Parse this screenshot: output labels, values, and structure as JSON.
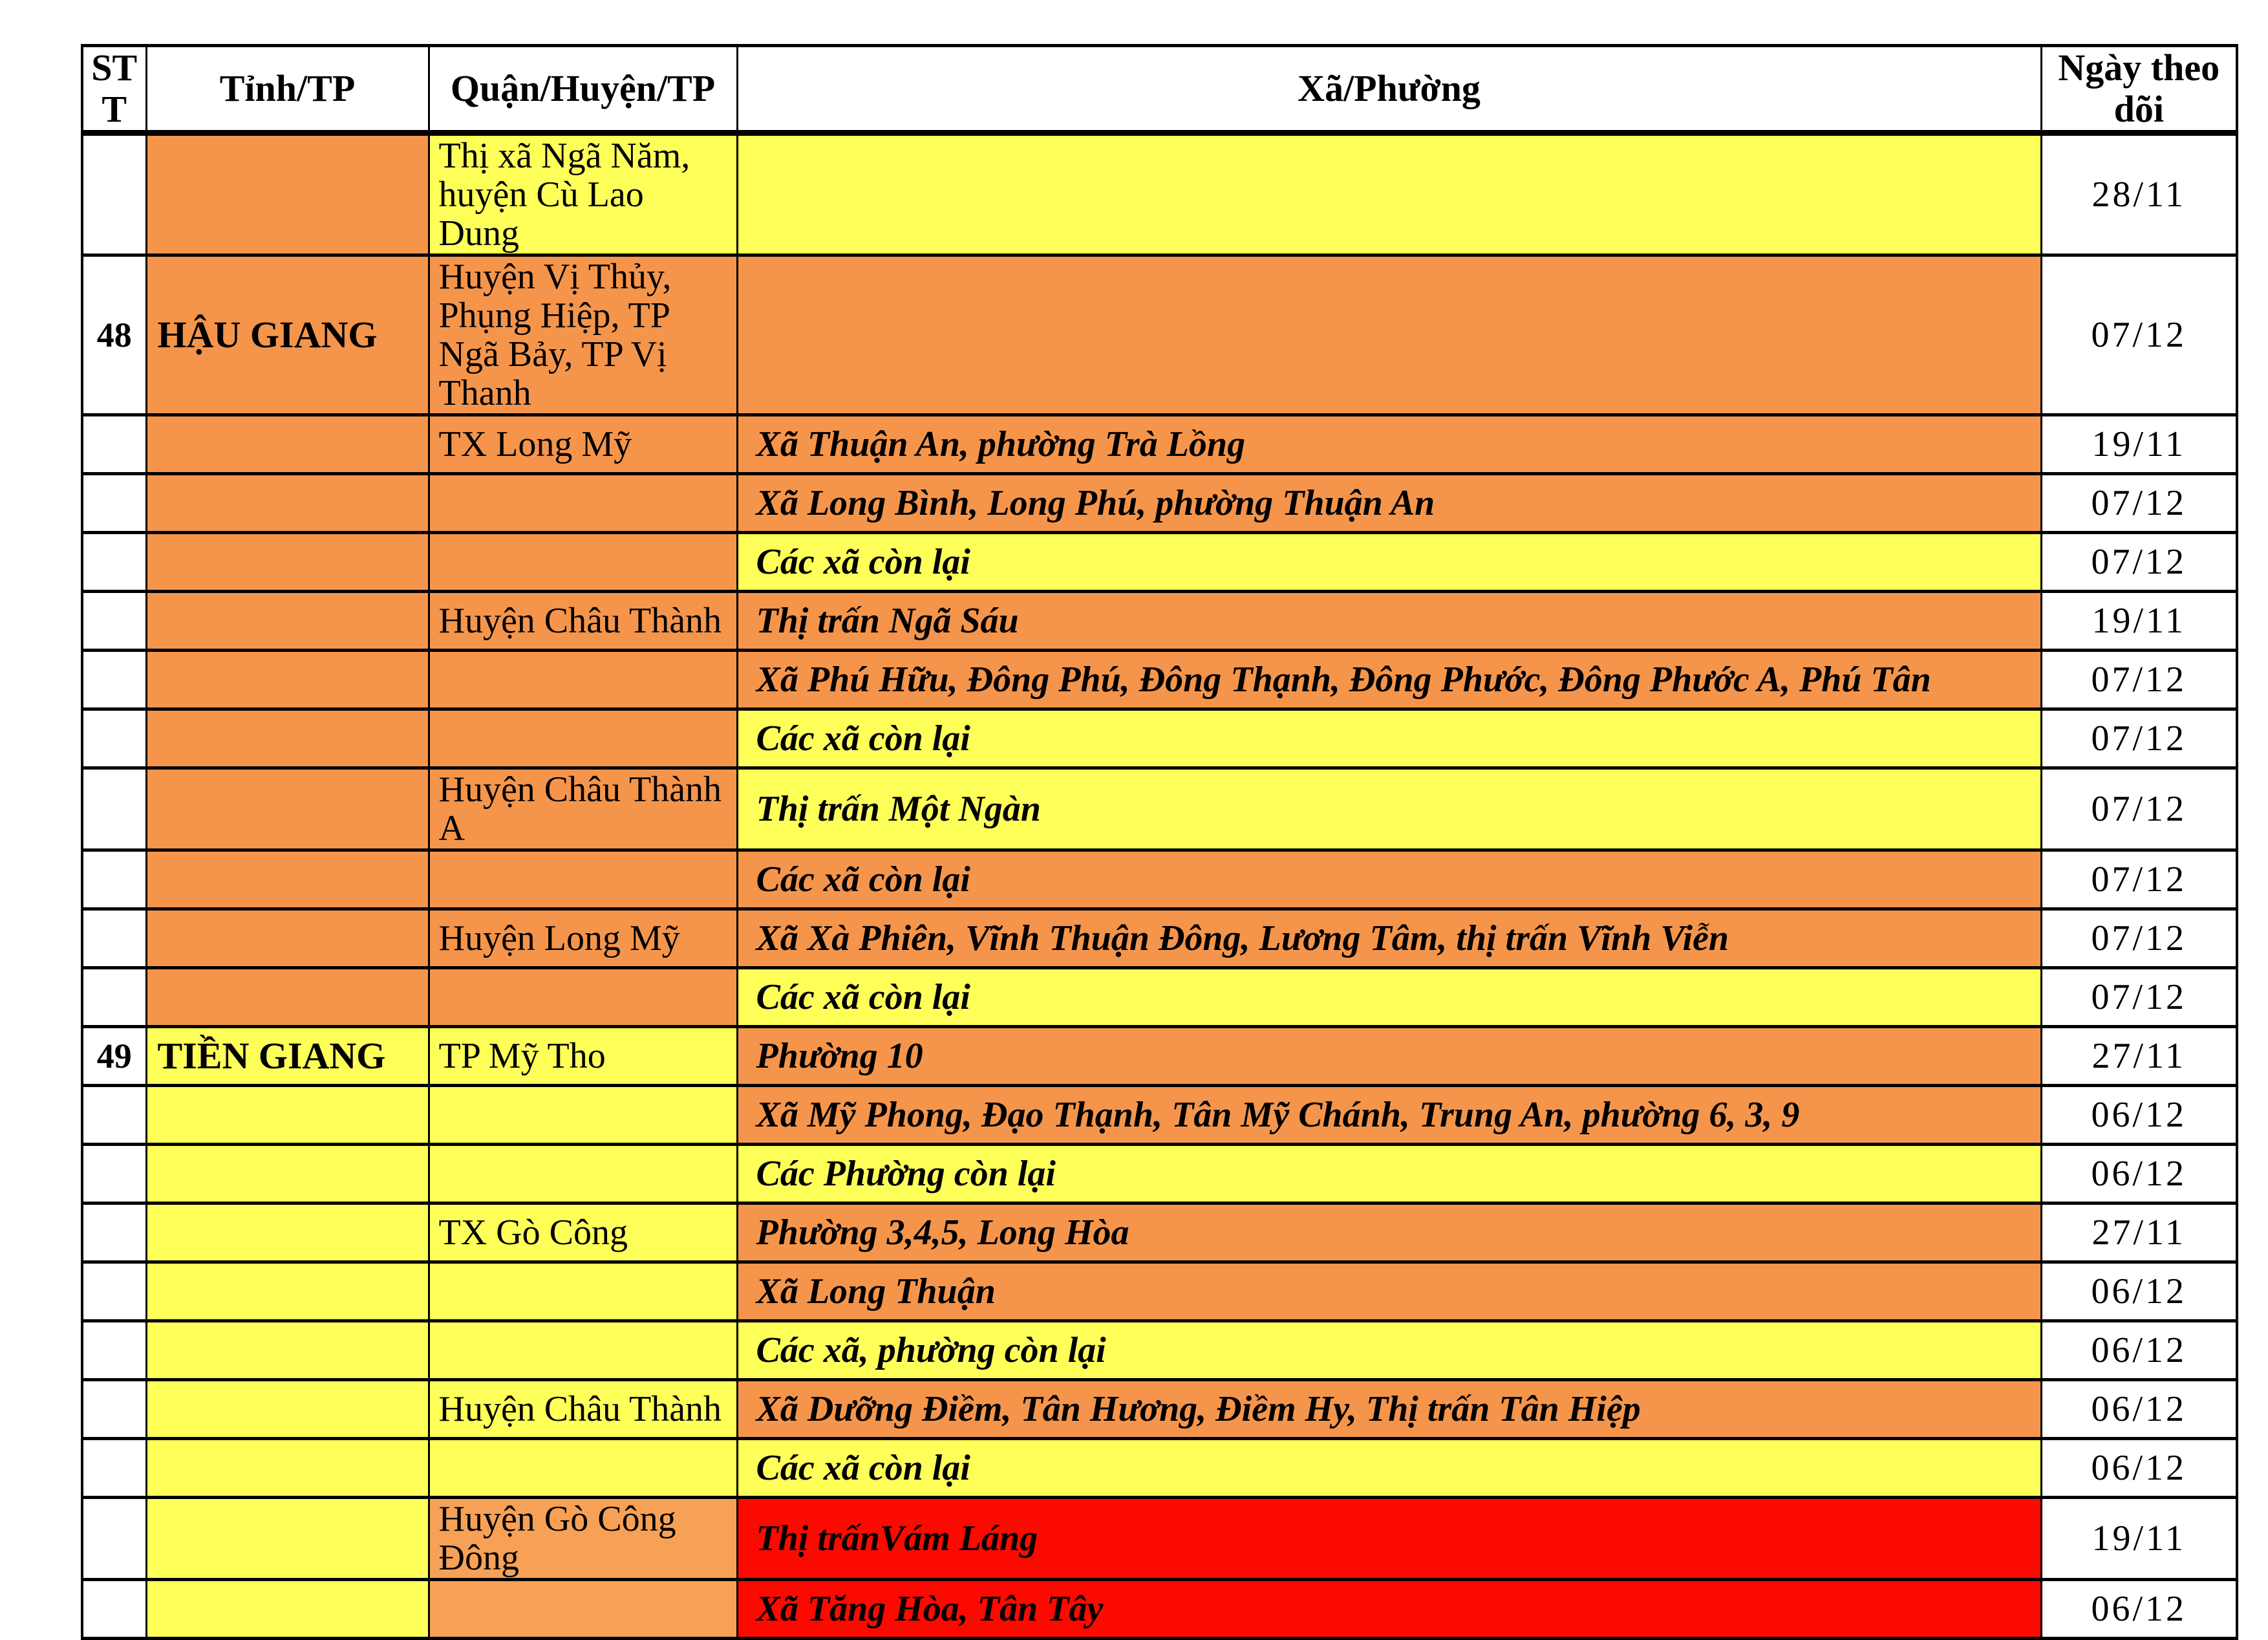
{
  "colors": {
    "orange": "#F5954B",
    "light_orange": "#F6A156",
    "yellow": "#FFFF5A",
    "red": "#FB0A01",
    "white": "#FFFFFF",
    "border": "#000000"
  },
  "header": {
    "columns": [
      "STT",
      "Tỉnh/TP",
      "Quận/Huyện/TP",
      "Xã/Phường",
      "Ngày theo dõi"
    ]
  },
  "rows": [
    {
      "stt": "",
      "province": "",
      "district": "Thị xã Ngã Năm, huyện Cù Lao Dung",
      "ward": "",
      "date": "28/11",
      "province_bg": "orange",
      "district_bg": "yellow",
      "ward_bg": "yellow"
    },
    {
      "stt": "48",
      "province": "HẬU GIANG",
      "district": "Huyện Vị Thủy, Phụng Hiệp, TP Ngã Bảy, TP Vị Thanh",
      "ward": "",
      "date": "07/12",
      "province_bg": "orange",
      "district_bg": "orange",
      "ward_bg": "orange"
    },
    {
      "stt": "",
      "province": "",
      "district": "TX Long Mỹ",
      "ward": "Xã Thuận An, phường Trà Lồng",
      "date": "19/11",
      "province_bg": "orange",
      "district_bg": "orange",
      "ward_bg": "orange"
    },
    {
      "stt": "",
      "province": "",
      "district": "",
      "ward": "Xã Long Bình, Long Phú, phường Thuận An",
      "date": "07/12",
      "province_bg": "orange",
      "district_bg": "orange",
      "ward_bg": "orange"
    },
    {
      "stt": "",
      "province": "",
      "district": "",
      "ward": "Các xã còn lại",
      "date": "07/12",
      "province_bg": "orange",
      "district_bg": "orange",
      "ward_bg": "yellow"
    },
    {
      "stt": "",
      "province": "",
      "district": "Huyện Châu Thành",
      "ward": "Thị trấn Ngã Sáu",
      "date": "19/11",
      "province_bg": "orange",
      "district_bg": "orange",
      "ward_bg": "orange"
    },
    {
      "stt": "",
      "province": "",
      "district": "",
      "ward": "Xã Phú Hữu, Đông Phú, Đông Thạnh, Đông Phước, Đông Phước A, Phú Tân",
      "date": "07/12",
      "province_bg": "orange",
      "district_bg": "orange",
      "ward_bg": "orange"
    },
    {
      "stt": "",
      "province": "",
      "district": "",
      "ward": "Các xã còn lại",
      "date": "07/12",
      "province_bg": "orange",
      "district_bg": "orange",
      "ward_bg": "yellow"
    },
    {
      "stt": "",
      "province": "",
      "district": "Huyện Châu Thành A",
      "ward": "Thị trấn Một Ngàn",
      "date": "07/12",
      "province_bg": "orange",
      "district_bg": "orange",
      "ward_bg": "yellow"
    },
    {
      "stt": "",
      "province": "",
      "district": "",
      "ward": "Các xã còn lại",
      "date": "07/12",
      "province_bg": "orange",
      "district_bg": "orange",
      "ward_bg": "orange"
    },
    {
      "stt": "",
      "province": "",
      "district": "Huyện Long Mỹ",
      "ward": "Xã Xà Phiên, Vĩnh Thuận Đông, Lương Tâm, thị trấn Vĩnh Viễn",
      "date": "07/12",
      "province_bg": "orange",
      "district_bg": "orange",
      "ward_bg": "orange"
    },
    {
      "stt": "",
      "province": "",
      "district": "",
      "ward": "Các xã còn lại",
      "date": "07/12",
      "province_bg": "orange",
      "district_bg": "orange",
      "ward_bg": "yellow"
    },
    {
      "stt": "49",
      "province": "TIỀN GIANG",
      "district": "TP Mỹ Tho",
      "ward": "Phường 10",
      "date": "27/11",
      "province_bg": "yellow",
      "district_bg": "yellow",
      "ward_bg": "orange"
    },
    {
      "stt": "",
      "province": "",
      "district": "",
      "ward": "Xã Mỹ Phong, Đạo Thạnh, Tân Mỹ Chánh, Trung An, phường 6, 3, 9",
      "date": "06/12",
      "province_bg": "yellow",
      "district_bg": "yellow",
      "ward_bg": "orange"
    },
    {
      "stt": "",
      "province": "",
      "district": "",
      "ward": "Các Phường còn lại",
      "date": "06/12",
      "province_bg": "yellow",
      "district_bg": "yellow",
      "ward_bg": "yellow"
    },
    {
      "stt": "",
      "province": "",
      "district": "TX Gò Công",
      "ward": "Phường 3,4,5, Long Hòa",
      "date": "27/11",
      "province_bg": "yellow",
      "district_bg": "yellow",
      "ward_bg": "orange"
    },
    {
      "stt": "",
      "province": "",
      "district": "",
      "ward": "Xã Long Thuận",
      "date": "06/12",
      "province_bg": "yellow",
      "district_bg": "yellow",
      "ward_bg": "orange"
    },
    {
      "stt": "",
      "province": "",
      "district": "",
      "ward": "Các xã, phường còn lại",
      "date": "06/12",
      "province_bg": "yellow",
      "district_bg": "yellow",
      "ward_bg": "yellow"
    },
    {
      "stt": "",
      "province": "",
      "district": "Huyện Châu Thành",
      "ward": "Xã Dưỡng Điềm, Tân Hương, Điềm Hy, Thị trấn Tân Hiệp",
      "date": "06/12",
      "province_bg": "yellow",
      "district_bg": "yellow",
      "ward_bg": "orange"
    },
    {
      "stt": "",
      "province": "",
      "district": "",
      "ward": "Các xã còn lại",
      "date": "06/12",
      "province_bg": "yellow",
      "district_bg": "yellow",
      "ward_bg": "yellow"
    },
    {
      "stt": "",
      "province": "",
      "district": "Huyện Gò Công Đông",
      "ward": "Thị trấnVám Láng",
      "date": "19/11",
      "province_bg": "yellow",
      "district_bg": "lorange",
      "ward_bg": "red"
    },
    {
      "stt": "",
      "province": "",
      "district": "",
      "ward": "Xã Tăng Hòa, Tân Tây",
      "date": "06/12",
      "province_bg": "yellow",
      "district_bg": "lorange",
      "ward_bg": "red"
    }
  ]
}
